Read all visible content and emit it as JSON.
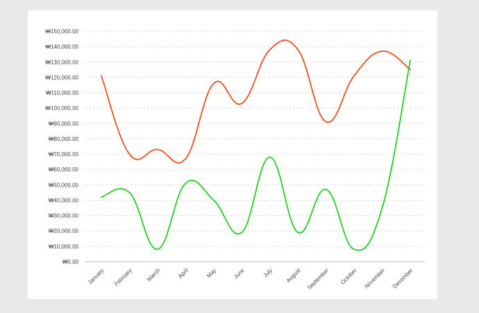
{
  "chart_data": {
    "type": "line",
    "title": "",
    "xlabel": "",
    "ylabel": "",
    "categories": [
      "January",
      "February",
      "March",
      "April",
      "May",
      "June",
      "July",
      "August",
      "September",
      "October",
      "November",
      "December"
    ],
    "y_ticks": [
      "₩0.00",
      "₩10,000.00",
      "₩20,000.00",
      "₩30,000.00",
      "₩40,000.00",
      "₩50,000.00",
      "₩60,000.00",
      "₩70,000.00",
      "₩80,000.00",
      "₩90,000.00",
      "₩100,000.00",
      "₩110,000.00",
      "₩120,000.00",
      "₩130,000.00",
      "₩140,000.00",
      "₩150,000.00"
    ],
    "ylim": [
      0,
      150000
    ],
    "grid": true,
    "series": [
      {
        "color": "#e8501e",
        "values": [
          121000,
          70000,
          73000,
          67000,
          116000,
          103000,
          138000,
          138000,
          91000,
          121000,
          137000,
          125000
        ]
      },
      {
        "color": "#22cc22",
        "values": [
          42000,
          45000,
          8000,
          51000,
          40000,
          19000,
          68000,
          19000,
          47000,
          8000,
          35000,
          131000
        ]
      }
    ]
  }
}
